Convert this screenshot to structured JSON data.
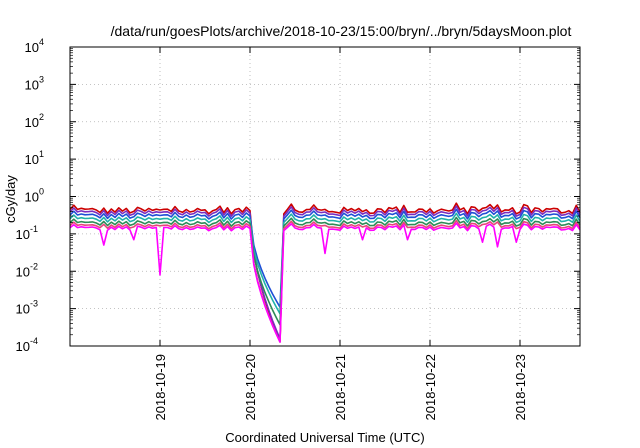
{
  "chart_data": {
    "type": "line",
    "title": "/data/run/goesPlots/archive/2018-10-23/15:00/bryn/../bryn/5daysMoon.plot",
    "xlabel": "Coordinated Universal Time (UTC)",
    "ylabel": "cGy/day",
    "x_range": [
      "2018-10-18T00:00",
      "2018-10-23T16:00"
    ],
    "x_ticks": [
      "2018-10-19",
      "2018-10-20",
      "2018-10-21",
      "2018-10-22",
      "2018-10-23"
    ],
    "y_scale": "log",
    "ylim": [
      0.0001,
      10000
    ],
    "y_ticks": [
      {
        "base": "10",
        "exp": "-4"
      },
      {
        "base": "10",
        "exp": "-3"
      },
      {
        "base": "10",
        "exp": "-2"
      },
      {
        "base": "10",
        "exp": "-1"
      },
      {
        "base": "10",
        "exp": "0"
      },
      {
        "base": "10",
        "exp": "1"
      },
      {
        "base": "10",
        "exp": "2"
      },
      {
        "base": "10",
        "exp": "3"
      },
      {
        "base": "10",
        "exp": "4"
      }
    ],
    "grid": true,
    "legend": "none",
    "series": [
      {
        "color": "#cc0000",
        "baseline": 0.42,
        "gap_start": "2018-10-20T00:00",
        "gap_min": 0.0001,
        "gap_end": "2018-10-20T08:30"
      },
      {
        "color": "#7b2cbf",
        "baseline": 0.36,
        "gap_start": "2018-10-20T00:00",
        "gap_min": 0.00012,
        "gap_end": "2018-10-20T08:30"
      },
      {
        "color": "#1f4fd6",
        "baseline": 0.3,
        "gap_start": "2018-10-20T00:00",
        "gap_min": 0.0009,
        "gap_end": "2018-10-20T08:30"
      },
      {
        "color": "#20b2aa",
        "baseline": 0.24,
        "gap_start": "2018-10-20T00:00",
        "gap_min": 0.0006,
        "gap_end": "2018-10-20T08:30"
      },
      {
        "color": "#2e8b57",
        "baseline": 0.19,
        "gap_start": "2018-10-20T00:00",
        "gap_min": 0.0003,
        "gap_end": "2018-10-20T08:30"
      },
      {
        "color": "#e8457a",
        "baseline": 0.16,
        "gap_start": "2018-10-20T00:00",
        "gap_min": 0.0001,
        "gap_end": "2018-10-20T08:30"
      },
      {
        "color": "#ff00ff",
        "baseline": 0.14,
        "gap_start": "2018-10-20T00:00",
        "gap_min": 0.0001,
        "gap_end": "2018-10-20T08:30",
        "dips": [
          {
            "x": "2018-10-18T09:00",
            "y": 0.05
          },
          {
            "x": "2018-10-18T17:00",
            "y": 0.07
          },
          {
            "x": "2018-10-19T00:00",
            "y": 0.008
          },
          {
            "x": "2018-10-20T20:00",
            "y": 0.03
          },
          {
            "x": "2018-10-21T06:00",
            "y": 0.07
          },
          {
            "x": "2018-10-21T18:00",
            "y": 0.07
          },
          {
            "x": "2018-10-22T14:00",
            "y": 0.06
          },
          {
            "x": "2018-10-22T18:00",
            "y": 0.045
          },
          {
            "x": "2018-10-22T23:00",
            "y": 0.06
          }
        ]
      }
    ]
  }
}
